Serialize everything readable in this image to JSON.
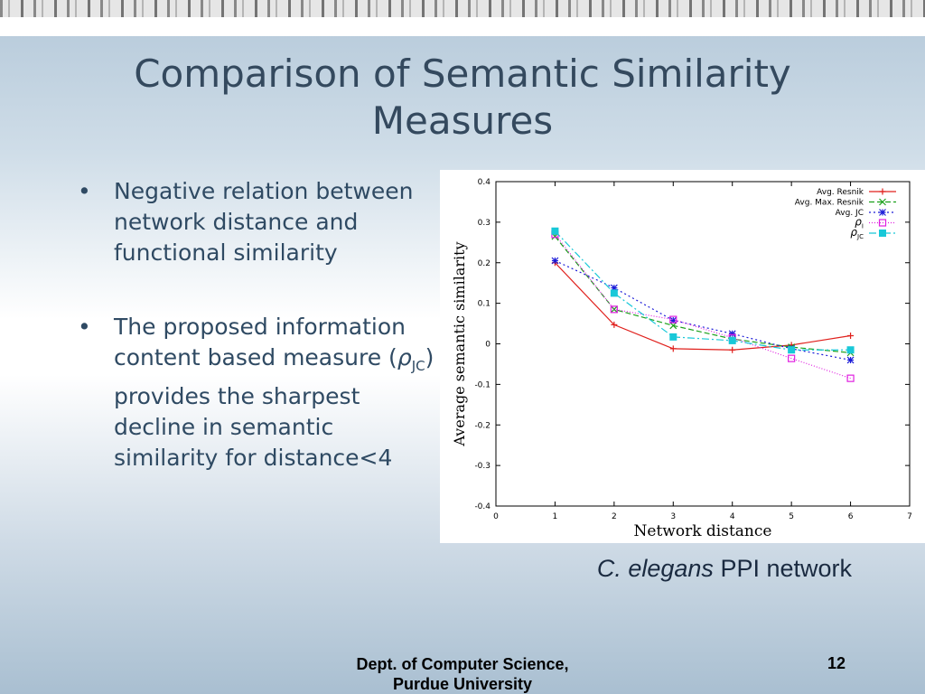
{
  "slide": {
    "title": "Comparison of Semantic Similarity Measures",
    "bullets": [
      {
        "text": "Negative relation between network distance and functional similarity"
      },
      {
        "text_before": "The proposed information content based measure (",
        "rho": "ρ",
        "sub": "JC",
        "text_after": ") provides the sharpest decline in semantic similarity for distance<4"
      }
    ],
    "caption": {
      "italic": "C. elegans",
      "rest": " PPI network"
    },
    "footer": {
      "dept_line1": "Dept. of Computer Science,",
      "dept_line2": "Purdue University",
      "page": "12"
    }
  },
  "chart_data": {
    "type": "line",
    "xlabel": "Network distance",
    "ylabel": "Average semantic similarity",
    "xlim": [
      0,
      7
    ],
    "ylim": [
      -0.4,
      0.4
    ],
    "x_ticks": [
      "0",
      "1",
      "2",
      "3",
      "4",
      "5",
      "6",
      "7"
    ],
    "y_ticks": [
      "0.4",
      "0.3",
      "0.2",
      "0.1",
      "0",
      "-0.1",
      "-0.2",
      "-0.3",
      "-0.4"
    ],
    "x": [
      1,
      2,
      3,
      4,
      5,
      6
    ],
    "grid": false,
    "legend_position": "top-right",
    "series": [
      {
        "name": "Avg. Resnik",
        "values": [
          0.2,
          0.047,
          -0.012,
          -0.015,
          -0.003,
          0.02
        ],
        "color": "#e0201c",
        "dash": "",
        "marker": "plus"
      },
      {
        "name": "Avg. Max. Resnik",
        "values": [
          0.265,
          0.085,
          0.045,
          0.012,
          -0.008,
          -0.022
        ],
        "color": "#1aa01a",
        "dash": "6 3",
        "marker": "x"
      },
      {
        "name": "Avg. JC",
        "values": [
          0.205,
          0.138,
          0.058,
          0.025,
          -0.012,
          -0.04
        ],
        "color": "#1c1cd8",
        "dash": "2 3",
        "marker": "star"
      },
      {
        "name": "ρ",
        "name_sub": "I",
        "values": [
          0.27,
          0.085,
          0.06,
          0.015,
          -0.036,
          -0.085
        ],
        "color": "#e020e0",
        "dash": "1 2",
        "marker": "square"
      },
      {
        "name": "ρ",
        "name_sub": "JC",
        "values": [
          0.278,
          0.125,
          0.017,
          0.008,
          -0.015,
          -0.015
        ],
        "color": "#18c8d8",
        "dash": "8 3 2 3",
        "marker": "filled-square"
      }
    ]
  }
}
